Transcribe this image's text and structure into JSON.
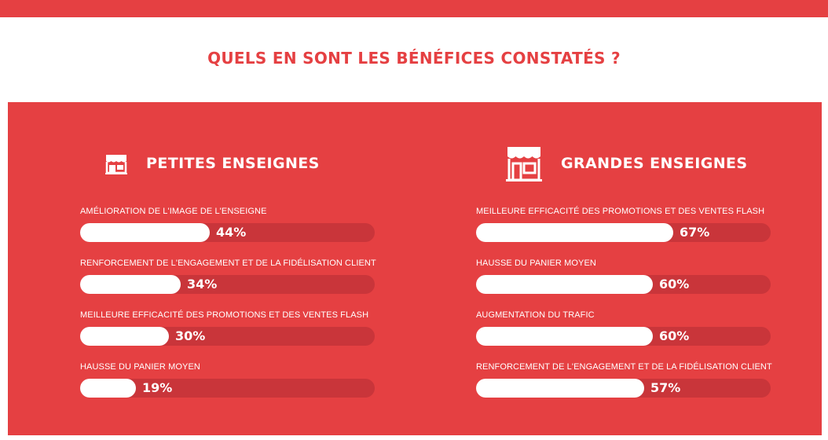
{
  "header": {
    "title": "QUELS EN SONT LES BÉNÉFICES CONSTATÉS ?"
  },
  "colors": {
    "accent": "#e54042",
    "bar_track": "#c9353a",
    "bar_fill": "#ffffff"
  },
  "columns": [
    {
      "title": "PETITES ENSEIGNES",
      "icon": "small-store-icon",
      "items": [
        {
          "label": "AMÉLIORATION DE L'IMAGE DE L'ENSEIGNE",
          "value": 44,
          "display": "44%"
        },
        {
          "label": "RENFORCEMENT DE L'ENGAGEMENT ET DE LA FIDÉLISATION CLIENT",
          "value": 34,
          "display": "34%"
        },
        {
          "label": "MEILLEURE EFFICACITÉ DES PROMOTIONS ET DES VENTES FLASH",
          "value": 30,
          "display": "30%"
        },
        {
          "label": "HAUSSE DU PANIER MOYEN",
          "value": 19,
          "display": "19%"
        }
      ]
    },
    {
      "title": "GRANDES ENSEIGNES",
      "icon": "large-store-icon",
      "items": [
        {
          "label": "MEILLEURE EFFICACITÉ DES PROMOTIONS ET DES VENTES FLASH",
          "value": 67,
          "display": "67%"
        },
        {
          "label": "HAUSSE DU PANIER MOYEN",
          "value": 60,
          "display": "60%"
        },
        {
          "label": "AUGMENTATION DU TRAFIC",
          "value": 60,
          "display": "60%"
        },
        {
          "label": "RENFORCEMENT DE L'ENGAGEMENT ET DE LA FIDÉLISATION CLIENT",
          "value": 57,
          "display": "57%"
        }
      ]
    }
  ]
}
